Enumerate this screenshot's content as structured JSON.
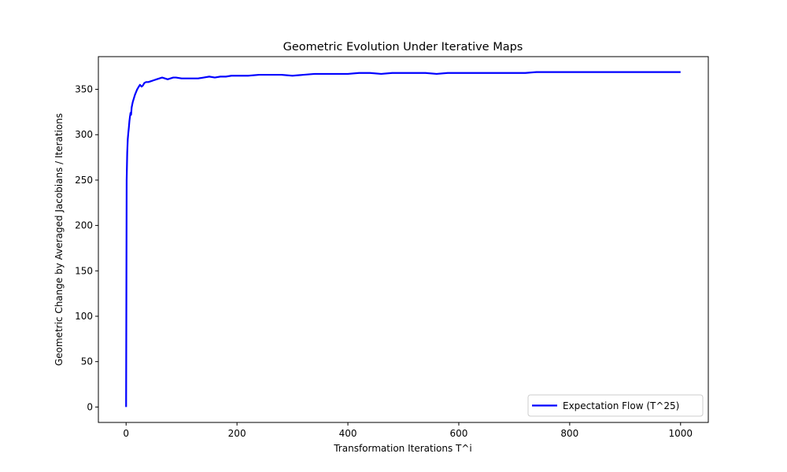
{
  "chart_data": {
    "type": "line",
    "title": "Geometric Evolution Under Iterative Maps",
    "xlabel": "Transformation Iterations T^i",
    "ylabel": "Geometric Change by Averaged Jacobians / Iterations",
    "xlim": [
      -50,
      1050
    ],
    "ylim": [
      -17,
      386
    ],
    "xticks": [
      0,
      200,
      400,
      600,
      800,
      1000
    ],
    "yticks": [
      0,
      50,
      100,
      150,
      200,
      250,
      300,
      350
    ],
    "grid": false,
    "legend_position": "lower-right",
    "series": [
      {
        "name": "Expectation Flow (T^25)",
        "color": "#0000ff",
        "x": [
          0,
          1,
          2,
          3,
          4,
          5,
          6,
          7,
          8,
          9,
          10,
          12,
          14,
          16,
          18,
          20,
          22,
          25,
          28,
          30,
          33,
          36,
          40,
          45,
          50,
          55,
          60,
          65,
          70,
          75,
          80,
          85,
          90,
          100,
          110,
          120,
          130,
          140,
          150,
          160,
          170,
          180,
          190,
          200,
          220,
          240,
          260,
          280,
          300,
          320,
          340,
          360,
          380,
          400,
          420,
          440,
          460,
          480,
          500,
          520,
          540,
          560,
          580,
          600,
          620,
          640,
          660,
          680,
          700,
          720,
          740,
          760,
          780,
          800,
          820,
          840,
          860,
          880,
          900,
          920,
          940,
          960,
          980,
          1000
        ],
        "y": [
          0,
          250,
          280,
          295,
          302,
          308,
          315,
          320,
          324,
          322,
          330,
          336,
          340,
          344,
          347,
          350,
          352,
          355,
          353,
          354,
          357,
          358,
          358,
          359,
          360,
          361,
          362,
          363,
          362,
          361,
          362,
          363,
          363,
          362,
          362,
          362,
          362,
          363,
          364,
          363,
          364,
          364,
          365,
          365,
          365,
          366,
          366,
          366,
          365,
          366,
          367,
          367,
          367,
          367,
          368,
          368,
          367,
          368,
          368,
          368,
          368,
          367,
          368,
          368,
          368,
          368,
          368,
          368,
          368,
          368,
          369,
          369,
          369,
          369,
          369,
          369,
          369,
          369,
          369,
          369,
          369,
          369,
          369,
          369
        ]
      }
    ]
  }
}
